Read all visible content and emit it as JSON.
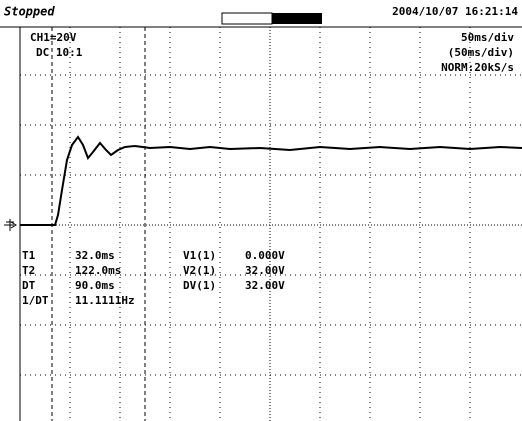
{
  "header": {
    "status": "Stopped",
    "date_time": "2004/10/07  16:21:14"
  },
  "channel": {
    "scale": "CH1=20V",
    "coupling": "DC  10:1"
  },
  "timebase": {
    "lines": [
      "50ms/div",
      "(50ms/div)",
      "NORM:20kS/s"
    ]
  },
  "measurements": {
    "rows": [
      [
        "T1",
        "32.0ms",
        "V1(1)",
        "0.000V"
      ],
      [
        "T2",
        "122.0ms",
        "V2(1)",
        "32.00V"
      ],
      [
        "DT",
        "90.0ms",
        "DV(1)",
        "32.00V"
      ],
      [
        "1/DT",
        "11.1111Hz",
        "",
        ""
      ]
    ]
  }
}
